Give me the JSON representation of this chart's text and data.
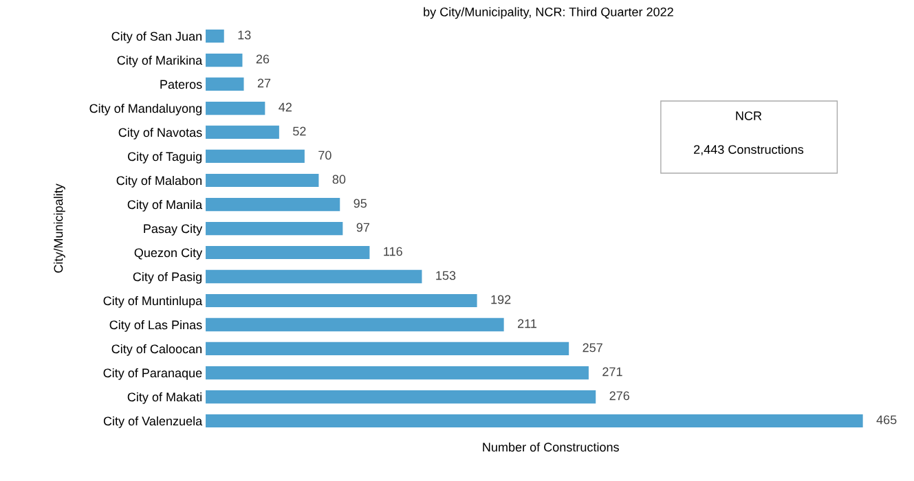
{
  "chart_data": {
    "type": "bar",
    "orientation": "horizontal",
    "title": "by City/Municipality, NCR: Third Quarter 2022",
    "xlabel": "Number of Constructions",
    "ylabel": "City/Municipality",
    "categories": [
      "City of San Juan",
      "City of Marikina",
      "Pateros",
      "City of Mandaluyong",
      "City of Navotas",
      "City of Taguig",
      "City of Malabon",
      "City of Manila",
      "Pasay City",
      "Quezon City",
      "City of Pasig",
      "City of Muntinlupa",
      "City of Las Pinas",
      "City of Caloocan",
      "City of Paranaque",
      "City of Makati",
      "City of Valenzuela"
    ],
    "values": [
      13,
      26,
      27,
      42,
      52,
      70,
      80,
      95,
      97,
      116,
      153,
      192,
      211,
      257,
      271,
      276,
      465
    ],
    "color": "#4ea1cf",
    "data_labels": true,
    "tick_labels": "y",
    "annotations": [
      "NCR",
      "2,443 Constructions"
    ]
  }
}
